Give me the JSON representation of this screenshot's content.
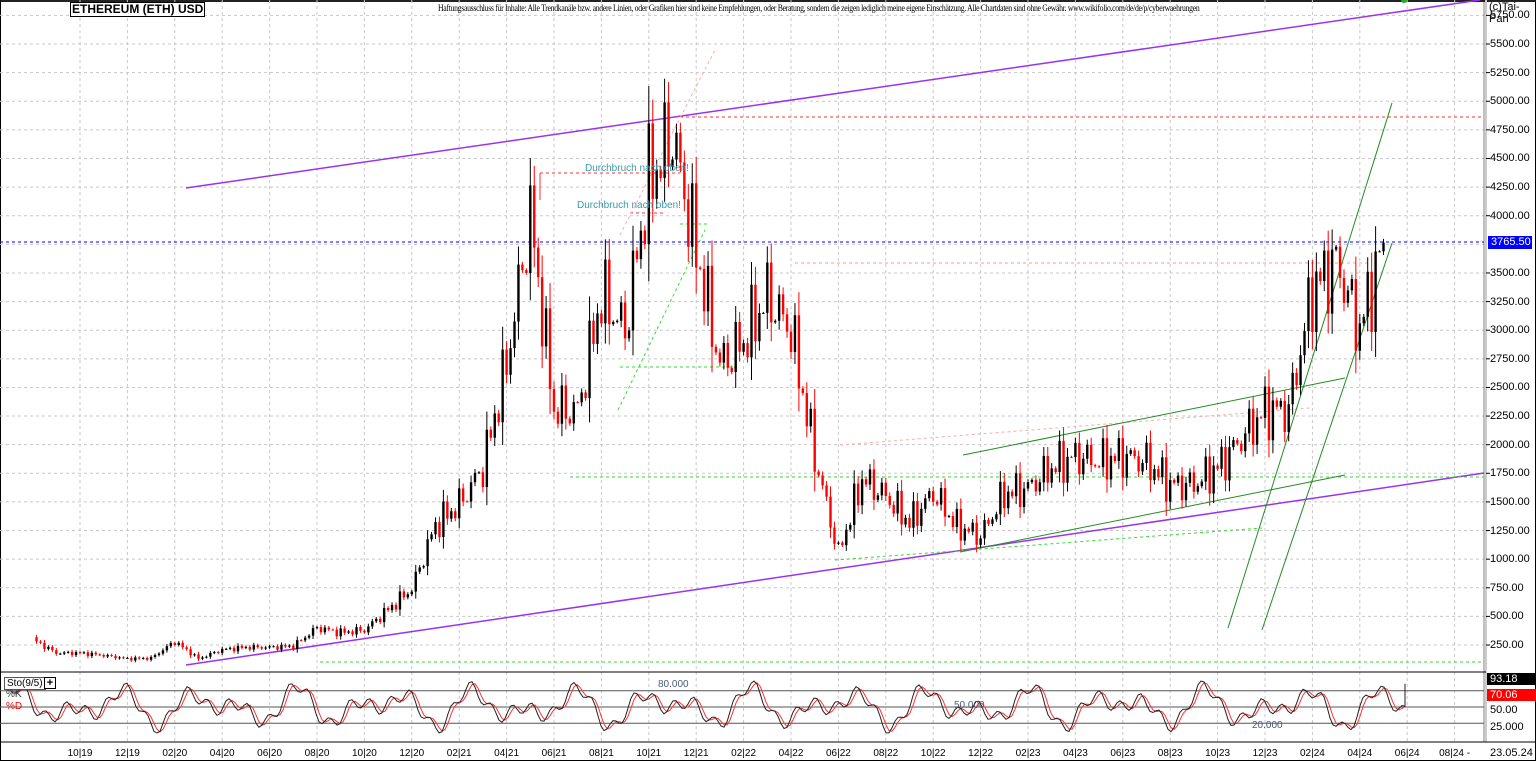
{
  "header": {
    "title": "ETHEREUM (ETH) USD",
    "disclaimer": "Haftungsausschluss für Inhalte: Alle Trendkanäle bzw. andere Linien, oder Grafiken hier sind keine Empfehlungen, oder Beratung, sondern die zeigen lediglich meine eigene Einschätzung. Alle Chartdaten sind ohne Gewähr.  www.wikifolio.com/de/de/p/cyberwaehrungen",
    "copyright": "(c)Tai-Pan"
  },
  "current_price_tag": "3765.50",
  "stochastic": {
    "label": "Sto(9/5)",
    "plus_icon": "+",
    "k_label": "%K",
    "d_label": "%D",
    "k_value": "93.18",
    "d_value": "70.06",
    "axis_labels": [
      "50.00",
      "25.000"
    ],
    "level_annotations": [
      "80.000",
      "50.000",
      "20.000"
    ]
  },
  "date_label": "23.05.24",
  "annotations": [
    "Durchbruch nach oben!",
    "Durchbruch nach oben!"
  ],
  "colors": {
    "up_candle": "#000000",
    "down_candle": "#ff0000",
    "long_channel": "#9933ee",
    "green_trend": "#228b22",
    "green_dashed": "#33dd33",
    "red_dashed": "#ff3333",
    "current_price_line": "#0000ff",
    "grid": "#c8c8c8"
  },
  "chart_data": [
    {
      "type": "line",
      "title": "ETHEREUM (ETH) USD",
      "subtitle": "Candlestick (approx. closes)",
      "xlabel": "",
      "ylabel": "USD",
      "ylim": [
        0,
        5800
      ],
      "grid": true,
      "y_ticks": [
        "5750.00",
        "5500.00",
        "5250.00",
        "5000.00",
        "4750.00",
        "4500.00",
        "4250.00",
        "4000.00",
        "3500.00",
        "3250.00",
        "3000.00",
        "2750.00",
        "2500.00",
        "2250.00",
        "2000.00",
        "1750.00",
        "1500.00",
        "1250.00",
        "1000.00",
        "750.00",
        "500.00",
        "250.00"
      ],
      "x_ticks": [
        "10|19",
        "12|19",
        "02|20",
        "04|20",
        "06|20",
        "08|20",
        "10|20",
        "12|20",
        "02|21",
        "04|21",
        "06|21",
        "08|21",
        "10|21",
        "12|21",
        "02|22",
        "04|22",
        "06|22",
        "08|22",
        "10|22",
        "12|22",
        "02|23",
        "04|23",
        "06|23",
        "08|23",
        "10|23",
        "12|23",
        "02|24",
        "04|24",
        "06|24",
        "08|24 -"
      ],
      "x": [
        "08/19",
        "09/19",
        "10/19",
        "11/19",
        "12/19",
        "01/20",
        "02/20",
        "03/20",
        "04/20",
        "05/20",
        "06/20",
        "07/20",
        "08/20",
        "09/20",
        "10/20",
        "11/20",
        "12/20",
        "01/21",
        "02/21",
        "03/21",
        "04/21",
        "05/21",
        "06/21",
        "07/21",
        "08/21",
        "09/21",
        "10/21",
        "11/21",
        "12/21",
        "01/22",
        "02/22",
        "03/22",
        "04/22",
        "05/22",
        "06/22",
        "07/22",
        "08/22",
        "09/22",
        "10/22",
        "11/22",
        "12/22",
        "01/23",
        "02/23",
        "03/23",
        "04/23",
        "05/23",
        "06/23",
        "07/23",
        "08/23",
        "09/23",
        "10/23",
        "11/23",
        "12/23",
        "01/24",
        "02/24",
        "03/24",
        "04/24",
        "05/24"
      ],
      "series": [
        {
          "name": "ETH/USD",
          "values": [
            300,
            180,
            180,
            160,
            130,
            135,
            280,
            130,
            210,
            230,
            230,
            240,
            400,
            360,
            380,
            560,
            740,
            1300,
            1480,
            1800,
            2700,
            4000,
            2300,
            2300,
            3300,
            3000,
            4300,
            4700,
            3700,
            2700,
            2900,
            3300,
            3000,
            1900,
            1050,
            1700,
            1550,
            1320,
            1580,
            1290,
            1200,
            1570,
            1620,
            1800,
            1900,
            1850,
            1900,
            1850,
            1650,
            1650,
            1800,
            2050,
            2300,
            2300,
            3350,
            3600,
            3000,
            3765.5
          ]
        },
        {
          "name": "Long-term channel upper",
          "values": [
            4250,
            5750
          ],
          "x_range": [
            "02/20",
            "06/25"
          ]
        },
        {
          "name": "Long-term channel lower",
          "values": [
            100,
            1750
          ],
          "x_range": [
            "02/20",
            "06/25"
          ]
        }
      ],
      "horizontal_levels": [
        {
          "value": 4870,
          "style": "red-dashed"
        },
        {
          "value": 3765.5,
          "style": "blue-dashed",
          "label": "3765.50"
        },
        {
          "value": 3580,
          "style": "red-dashed-light"
        },
        {
          "value": 1720,
          "style": "green-dashed"
        },
        {
          "value": 70,
          "style": "green-dashed"
        }
      ],
      "annotations": [
        {
          "text": "Durchbruch nach oben!",
          "x": "10/21",
          "y": 4400
        },
        {
          "text": "Durchbruch nach oben!",
          "x": "09/21",
          "y": 4080
        }
      ]
    },
    {
      "type": "line",
      "title": "Sto(9/5)",
      "ylim": [
        0,
        100
      ],
      "y_ticks": [
        "50.00",
        "25.000"
      ],
      "levels": [
        80,
        50,
        20
      ],
      "series": [
        {
          "name": "%K",
          "last": 93.18
        },
        {
          "name": "%D",
          "last": 70.06
        }
      ]
    }
  ]
}
